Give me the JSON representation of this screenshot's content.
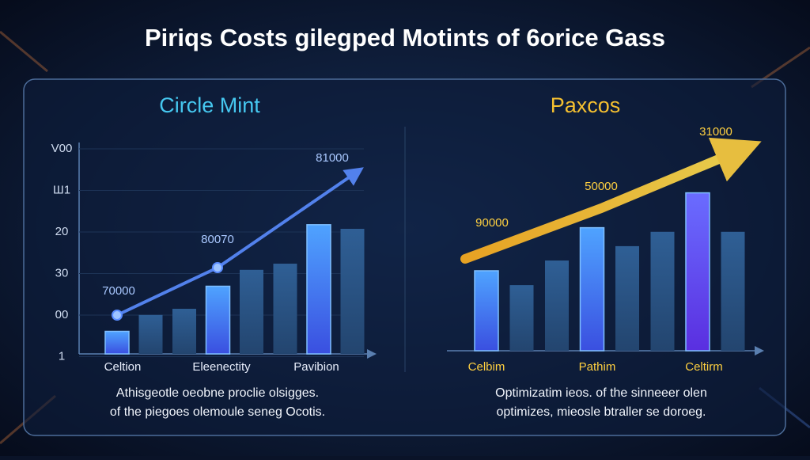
{
  "title": "Piriqs Costs gilegped Motints of 6orice Gass",
  "panels": [
    {
      "title": "Circle Mint",
      "axis_labels": [
        "V00",
        "Ш1",
        "20",
        "30",
        "00",
        "1"
      ],
      "categories": [
        "Celtion",
        "Eleenectity",
        "Pavibion"
      ],
      "bars": [
        11,
        19,
        22,
        33,
        41,
        44,
        63,
        61
      ],
      "trend_labels": [
        "70000",
        "80070",
        "81000"
      ],
      "caption": [
        "Athisgeotle oeobne proclie olsigges.",
        "of the piegoes olemoule seneg Ocotis."
      ]
    },
    {
      "title": "Paxcos",
      "categories": [
        "Celbim",
        "Pathim",
        "Celtirm"
      ],
      "bars": [
        39,
        32,
        44,
        60,
        51,
        58,
        77,
        58
      ],
      "trend_labels": [
        "90000",
        "50000",
        "31000"
      ],
      "caption": [
        "Optimizatim ieos. of the sinneeer olen",
        "optimizes, mieosle btraller se doroeg."
      ]
    }
  ]
}
